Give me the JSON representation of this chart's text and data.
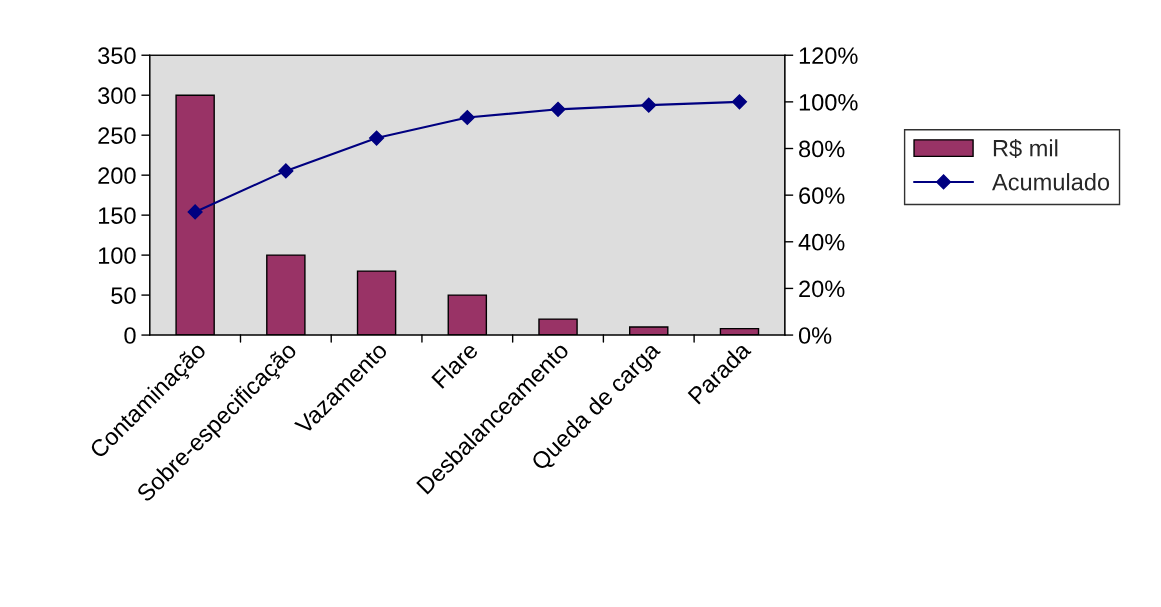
{
  "chart_data": {
    "type": "bar",
    "categories": [
      "Contaminação",
      "Sobre-especificação",
      "Vazamento",
      "Flare",
      "Desbalanceamento",
      "Queda de carga",
      "Parada"
    ],
    "series": [
      {
        "name": "R$ mil",
        "color": "#993366",
        "values": [
          300,
          100,
          80,
          50,
          20,
          10,
          8
        ]
      },
      {
        "name": "Acumulado",
        "type": "line",
        "axis": "y2",
        "color": "#000080",
        "marker": "diamond",
        "values": [
          52.8,
          70.4,
          84.5,
          93.3,
          96.8,
          98.6,
          100
        ]
      }
    ],
    "ylim": [
      0,
      350
    ],
    "yticks": [
      0,
      50,
      100,
      150,
      200,
      250,
      300,
      350
    ],
    "y2lim": [
      0,
      120
    ],
    "y2ticks": [
      {
        "value": 0,
        "label": "0%"
      },
      {
        "value": 20,
        "label": "20%"
      },
      {
        "value": 40,
        "label": "40%"
      },
      {
        "value": 60,
        "label": "60%"
      },
      {
        "value": 80,
        "label": "80%"
      },
      {
        "value": 100,
        "label": "100%"
      },
      {
        "value": 120,
        "label": "120%"
      }
    ],
    "grid": false,
    "legend": "right"
  }
}
